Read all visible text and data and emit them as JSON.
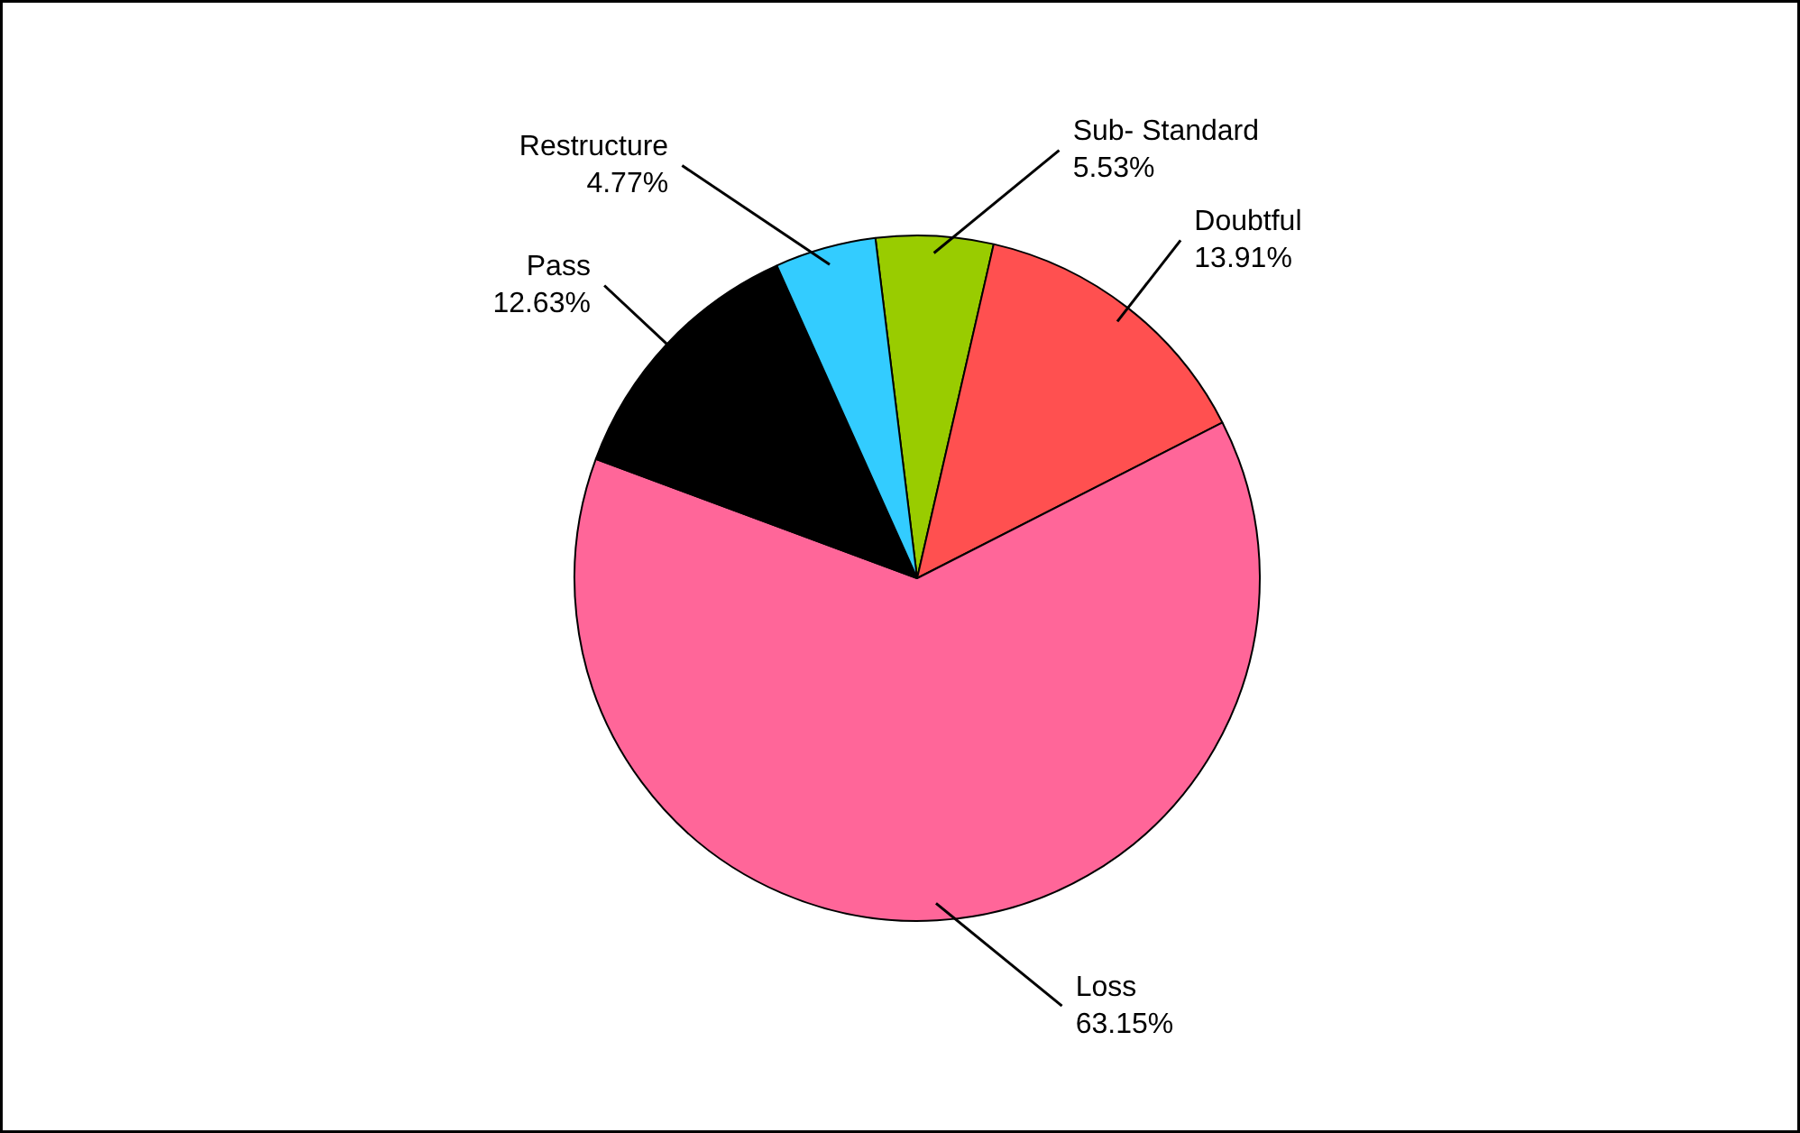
{
  "chart_data": {
    "type": "pie",
    "categories": [
      "Sub- Standard",
      "Doubtful",
      "Loss",
      "Pass",
      "Restructure"
    ],
    "values": [
      5.53,
      13.91,
      63.15,
      12.63,
      4.77
    ],
    "value_labels": [
      "5.53%",
      "13.91%",
      "63.15%",
      "12.63%",
      "4.77%"
    ],
    "colors": [
      "#99cc00",
      "#ff5050",
      "#ff6699",
      "#000000",
      "#33ccff"
    ]
  }
}
